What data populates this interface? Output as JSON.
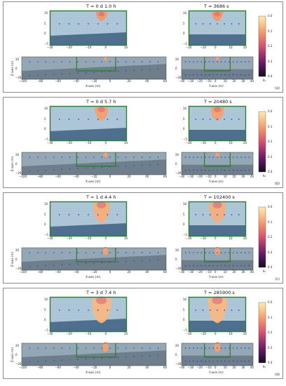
{
  "panels": [
    {
      "id": "a",
      "letter": "(a)",
      "title_left": "T = 0 d  1.0 h",
      "title_right": "T = 3686 s",
      "level": 0.12
    },
    {
      "id": "b",
      "letter": "(b)",
      "title_left": "T = 0 d  5.7 h",
      "title_right": "T = 20480 s",
      "level": 0.3
    },
    {
      "id": "c",
      "letter": "(c)",
      "title_left": "T = 1 d  4.4 h",
      "title_right": "T = 102400 s",
      "level": 0.62
    },
    {
      "id": "d",
      "letter": "(d)",
      "title_left": "T = 3 d  7.4 h",
      "title_right": "T = 285900 s",
      "level": 0.85
    }
  ],
  "axes": {
    "top_left_x_ticks": [
      "−30",
      "−20",
      "−10",
      "0",
      "10"
    ],
    "top_right_x_ticks": [
      "−20",
      "−10",
      "0",
      "10",
      "20"
    ],
    "top_y_ticks": [
      "10",
      "5",
      "0",
      "−5"
    ],
    "bottom_left_x_ticks": [
      "−100",
      "−80",
      "−60",
      "−40",
      "−20",
      "0",
      "20",
      "40",
      "60"
    ],
    "bottom_right_x_ticks": [
      "−40",
      "−30",
      "−20",
      "−10",
      "0",
      "10",
      "20",
      "30",
      "40"
    ],
    "bottom_y_ticks": [
      "20",
      "0",
      "−20"
    ],
    "xlabel_left": "X-axis (m)",
    "xlabel_right": "Y-axis (m)",
    "ylabel": "Z-axis (m)"
  },
  "colorbar": {
    "ticks": [
      "0.0",
      "0.1",
      "0.2",
      "0.3",
      "0.4"
    ],
    "label": "θₐ"
  },
  "colors": {
    "sky": "#a9c4d6",
    "ground": "#4f6f8f",
    "grid": "#c8d4dc",
    "frame": "#2e7d32",
    "points": "#2b3fd6",
    "mesh_bg": "#5d6f7c"
  }
}
